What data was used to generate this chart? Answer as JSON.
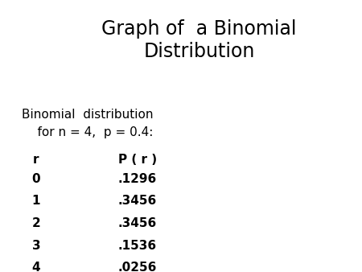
{
  "title_line1": "Graph of  a Binomial",
  "title_line2": "Distribution",
  "subtitle_line1": "Binomial  distribution",
  "subtitle_line2": "    for n = 4,  p = 0.4:",
  "col_header_r": "r",
  "col_header_p": "P ( r )",
  "table_r": [
    "0",
    "1",
    "2",
    "3",
    "4"
  ],
  "table_p": [
    ".1296",
    ".3456",
    ".3456",
    ".1536",
    ".0256"
  ],
  "bg_color": "#ffffff",
  "text_color": "#000000",
  "title_fontsize": 17,
  "subtitle_fontsize": 11,
  "table_fontsize": 11,
  "header_fontsize": 11
}
